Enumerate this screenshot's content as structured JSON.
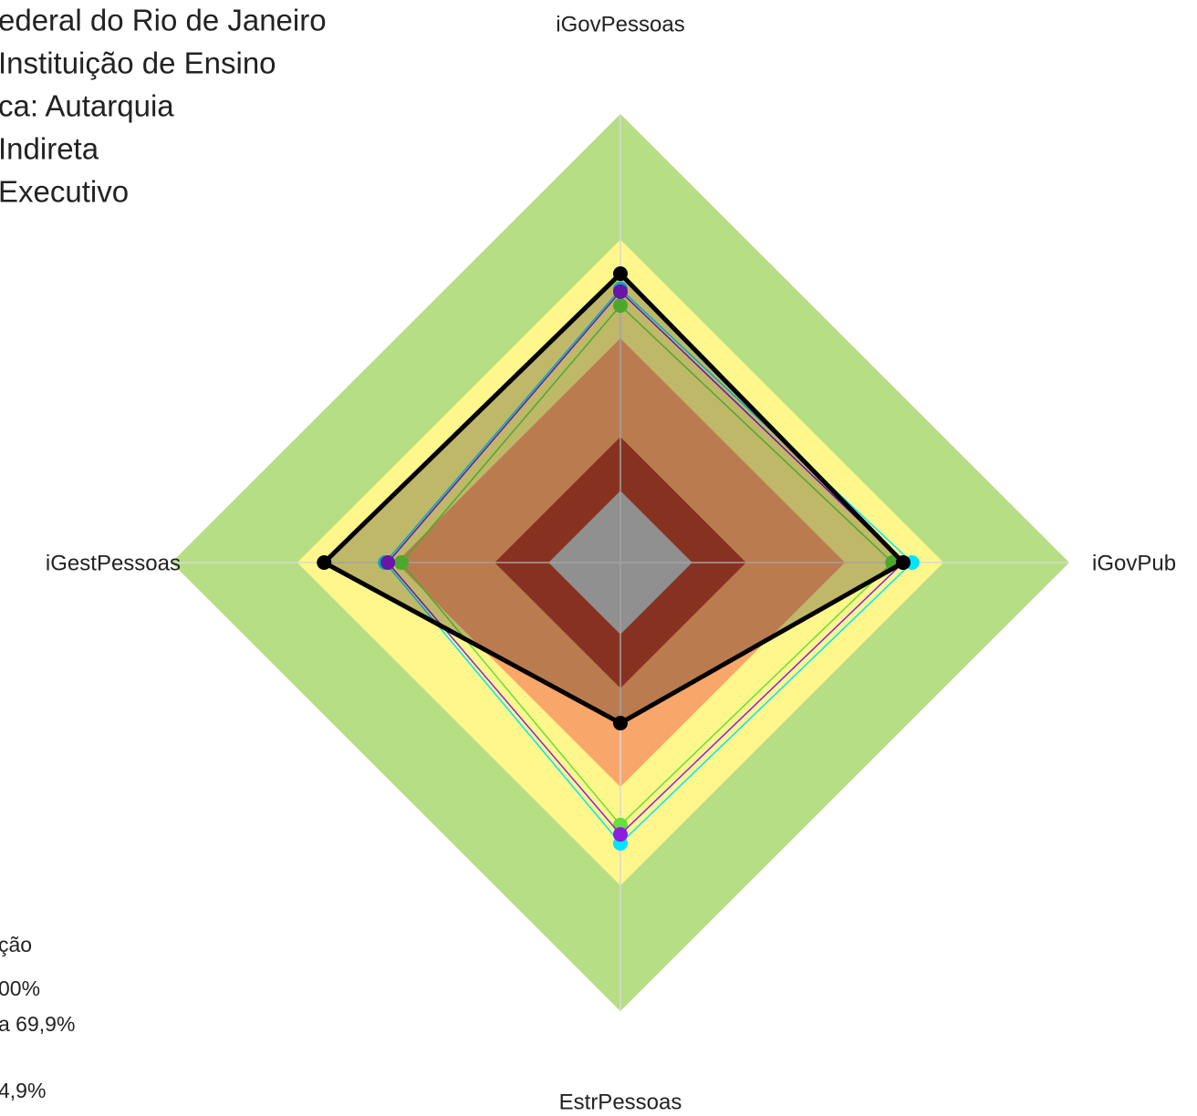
{
  "chart_data": {
    "type": "radar",
    "header_lines": [
      "ederal do Rio de Janeiro",
      " Instituição de Ensino",
      "ca: Autarquia",
      " Indireta",
      "Executivo"
    ],
    "legend_lines": [
      "ção",
      "00%",
      " a 69,9%",
      "4,9%"
    ],
    "categories": [
      "iGovPessoas",
      "iGovPub",
      "EstrPessoas",
      "iGestPessoas"
    ],
    "rlim": [
      0,
      100
    ],
    "bands": [
      {
        "limit": 100,
        "color": "#b6de84"
      },
      {
        "limit": 72,
        "color": "#fff68c"
      },
      {
        "limit": 50,
        "color": "#f9a66a"
      },
      {
        "limit": 28,
        "color": "#b5432d"
      },
      {
        "limit": 16,
        "color": "#c0c0c0"
      }
    ],
    "series": [
      {
        "color": "#00e5ff",
        "values": [
          61,
          65,
          62.6,
          52.4
        ]
      },
      {
        "color": "#66e03c",
        "values": [
          57.3,
          60.6,
          58.5,
          48.8
        ]
      },
      {
        "color": "#8b1ee0",
        "values": [
          60.4,
          63,
          60.6,
          51.8
        ]
      },
      {
        "color": "#000000",
        "values": [
          64.4,
          63,
          35.8,
          66
        ],
        "fill": true
      }
    ]
  }
}
